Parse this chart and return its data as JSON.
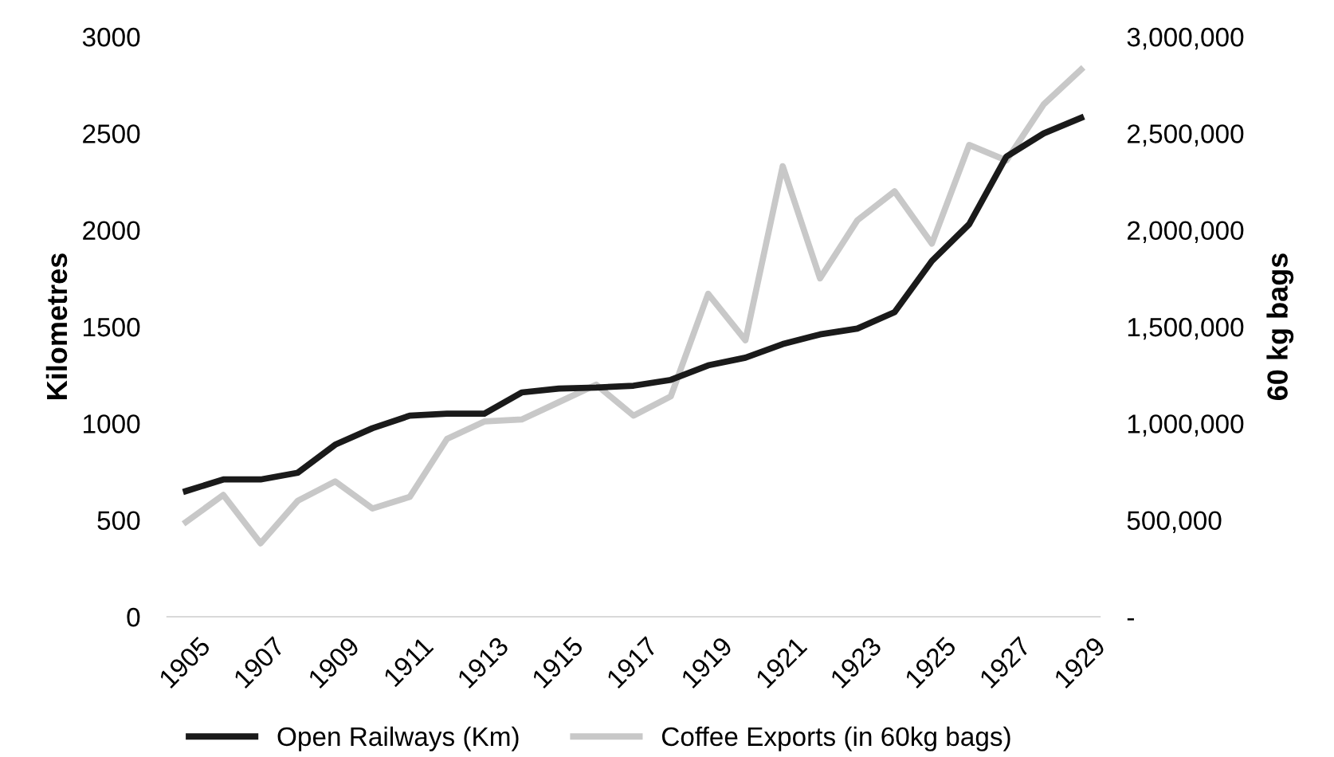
{
  "chart_data": {
    "type": "line",
    "ylabel": "Kilometres",
    "y2label": "60 kg bags",
    "categories": [
      "1905",
      null,
      "1907",
      null,
      "1909",
      null,
      "1911",
      null,
      "1913",
      null,
      "1915",
      null,
      "1917",
      null,
      "1919",
      null,
      "1921",
      null,
      "1923",
      null,
      "1925",
      null,
      "1927",
      null,
      "1929"
    ],
    "series": [
      {
        "name": "Open Railways (Km)",
        "color": "#1a1a1a",
        "values": [
          650,
          710,
          710,
          745,
          890,
          975,
          1040,
          1050,
          1050,
          1160,
          1180,
          1185,
          1195,
          1225,
          1300,
          1340,
          1410,
          1460,
          1490,
          1575,
          1840,
          2030,
          2380,
          2500,
          2580
        ]
      },
      {
        "name": "Coffee Exports (in 60kg bags)",
        "color": "#c8c8c8",
        "axis": "y2",
        "values": [
          490000,
          630000,
          380000,
          600000,
          700000,
          560000,
          620000,
          920000,
          1010000,
          1020000,
          1110000,
          1200000,
          1040000,
          1140000,
          1670000,
          1430000,
          2330000,
          1750000,
          2050000,
          2200000,
          1930000,
          2440000,
          2360000,
          2650000,
          2830000
        ]
      }
    ],
    "ylim": [
      0,
      3000
    ],
    "yticks": [
      0,
      500,
      1000,
      1500,
      2000,
      2500,
      3000
    ],
    "y2lim": [
      0,
      3000000
    ],
    "y2ticks": [
      {
        "value": 0,
        "label": "-"
      },
      {
        "value": 500000,
        "label": "500,000"
      },
      {
        "value": 1000000,
        "label": "1,000,000"
      },
      {
        "value": 1500000,
        "label": "1,500,000"
      },
      {
        "value": 2000000,
        "label": "2,000,000"
      },
      {
        "value": 2500000,
        "label": "2,500,000"
      },
      {
        "value": 3000000,
        "label": "3,000,000"
      }
    ],
    "grid": false,
    "legend": "bottom",
    "line_style": "solid",
    "marker": "none"
  }
}
